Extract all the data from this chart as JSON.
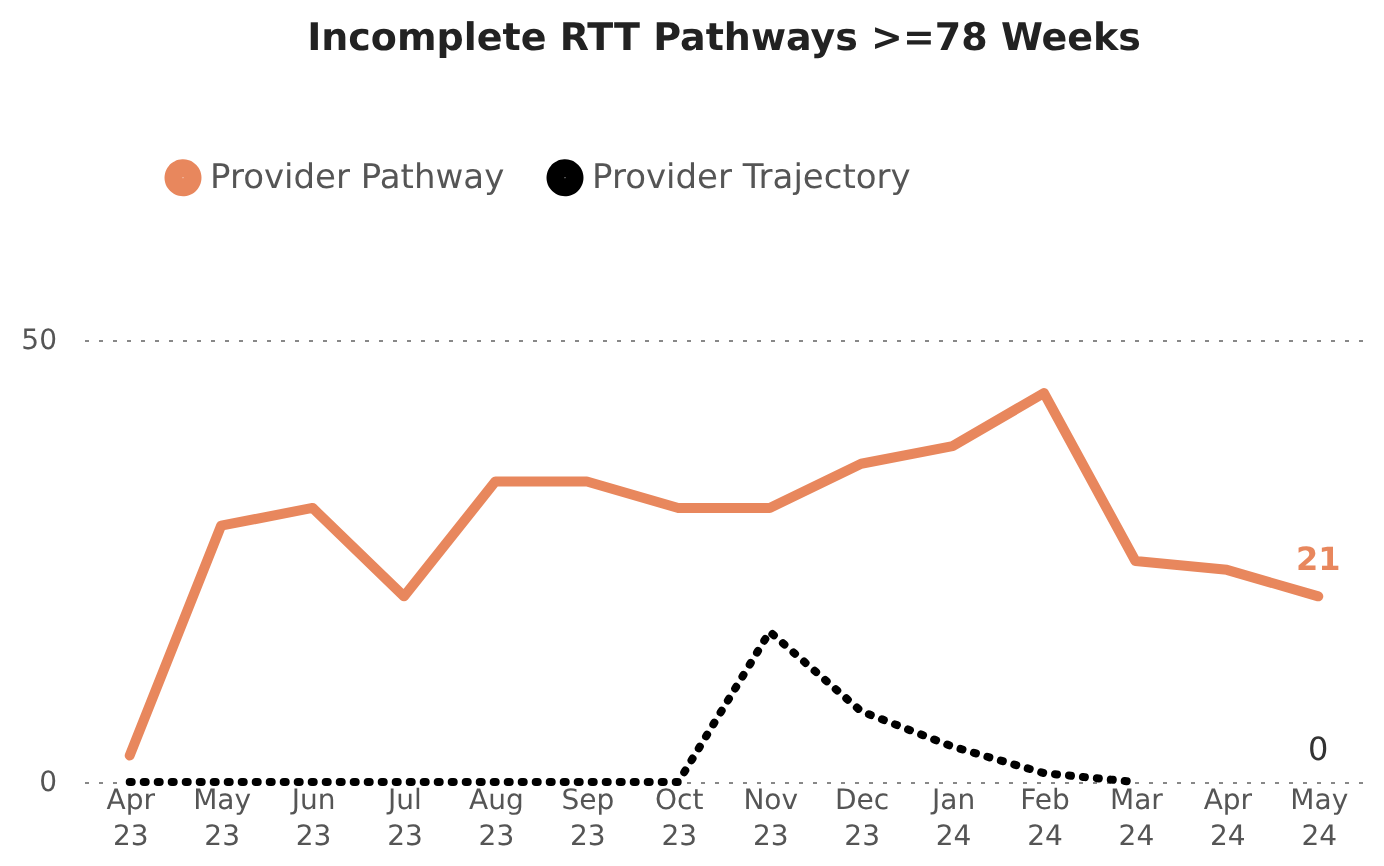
{
  "chart_data": {
    "type": "line",
    "title": "Incomplete RTT Pathways >=78 Weeks",
    "categories": [
      "Apr 23",
      "May 23",
      "Jun 23",
      "Jul 23",
      "Aug 23",
      "Sep 23",
      "Oct 23",
      "Nov 23",
      "Dec 23",
      "Jan 24",
      "Feb 24",
      "Mar 24",
      "Apr 24",
      "May 24"
    ],
    "series": [
      {
        "name": "Provider Pathway",
        "color": "#e8875d",
        "line_style": "solid",
        "values": [
          3,
          29,
          31,
          21,
          34,
          34,
          31,
          31,
          36,
          38,
          44,
          25,
          24,
          21
        ],
        "value_labels": [
          null,
          null,
          null,
          null,
          null,
          null,
          null,
          null,
          null,
          null,
          null,
          null,
          null,
          "21"
        ]
      },
      {
        "name": "Provider Trajectory",
        "color": "#000000",
        "line_style": "dotted",
        "values": [
          0,
          0,
          0,
          0,
          0,
          0,
          0,
          17,
          8,
          4,
          1,
          0,
          null,
          null
        ]
      }
    ],
    "annotations": [
      "0"
    ],
    "ylim": [
      0,
      50
    ],
    "yticks": [
      0,
      50
    ],
    "grid": "y",
    "legend": "top"
  }
}
